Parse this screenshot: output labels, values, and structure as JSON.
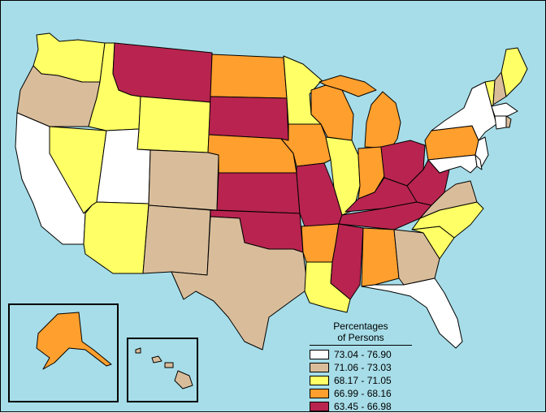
{
  "legend": {
    "title_line1": "Percentages",
    "title_line2": "of Persons",
    "items": [
      {
        "label": "73.04 - 76.90",
        "color": "#ffffff"
      },
      {
        "label": "71.06 - 73.03",
        "color": "#d9bd9b"
      },
      {
        "label": "68.17 - 71.05",
        "color": "#ffff66"
      },
      {
        "label": "66.99 - 68.16",
        "color": "#ff9f2e"
      },
      {
        "label": "63.45 - 66.98",
        "color": "#b8244f"
      }
    ]
  },
  "states": [
    {
      "id": "WA",
      "cls": 2
    },
    {
      "id": "OR",
      "cls": 1
    },
    {
      "id": "CA",
      "cls": 0
    },
    {
      "id": "NV",
      "cls": 2
    },
    {
      "id": "ID",
      "cls": 2
    },
    {
      "id": "MT",
      "cls": 4
    },
    {
      "id": "WY",
      "cls": 2
    },
    {
      "id": "UT",
      "cls": 0
    },
    {
      "id": "AZ",
      "cls": 2
    },
    {
      "id": "CO",
      "cls": 1
    },
    {
      "id": "NM",
      "cls": 1
    },
    {
      "id": "ND",
      "cls": 3
    },
    {
      "id": "SD",
      "cls": 4
    },
    {
      "id": "NE",
      "cls": 3
    },
    {
      "id": "KS",
      "cls": 4
    },
    {
      "id": "OK",
      "cls": 4
    },
    {
      "id": "TX",
      "cls": 1
    },
    {
      "id": "MN",
      "cls": 2
    },
    {
      "id": "IA",
      "cls": 3
    },
    {
      "id": "MO",
      "cls": 4
    },
    {
      "id": "AR",
      "cls": 3
    },
    {
      "id": "LA",
      "cls": 2
    },
    {
      "id": "WI",
      "cls": 3
    },
    {
      "id": "IL",
      "cls": 2
    },
    {
      "id": "MI",
      "cls": 3
    },
    {
      "id": "IN",
      "cls": 3
    },
    {
      "id": "OH",
      "cls": 4
    },
    {
      "id": "KY",
      "cls": 4
    },
    {
      "id": "TN",
      "cls": 4
    },
    {
      "id": "MS",
      "cls": 4
    },
    {
      "id": "AL",
      "cls": 3
    },
    {
      "id": "GA",
      "cls": 1
    },
    {
      "id": "FL",
      "cls": 0
    },
    {
      "id": "SC",
      "cls": 2
    },
    {
      "id": "NC",
      "cls": 2
    },
    {
      "id": "VA",
      "cls": 1
    },
    {
      "id": "WV",
      "cls": 4
    },
    {
      "id": "PA",
      "cls": 3
    },
    {
      "id": "NY",
      "cls": 0
    },
    {
      "id": "VT",
      "cls": 2
    },
    {
      "id": "NH",
      "cls": 1
    },
    {
      "id": "ME",
      "cls": 2
    },
    {
      "id": "MA",
      "cls": 0
    },
    {
      "id": "CT",
      "cls": 0
    },
    {
      "id": "RI",
      "cls": 1
    },
    {
      "id": "NJ",
      "cls": 0
    },
    {
      "id": "DE",
      "cls": 0
    },
    {
      "id": "MD",
      "cls": 0
    },
    {
      "id": "AK",
      "cls": 3
    },
    {
      "id": "HI",
      "cls": 1
    }
  ]
}
